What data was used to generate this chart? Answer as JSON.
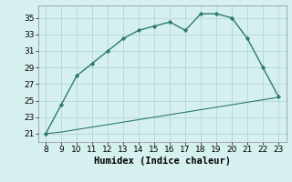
{
  "x": [
    8,
    9,
    10,
    11,
    12,
    13,
    14,
    15,
    16,
    17,
    18,
    19,
    20,
    21,
    22,
    23
  ],
  "y_main": [
    21,
    24.5,
    28,
    29.5,
    31,
    32.5,
    33.5,
    34,
    34.5,
    33.5,
    35.5,
    35.5,
    35,
    32.5,
    29,
    25.5
  ],
  "y_flat": [
    21,
    21.2,
    21.5,
    21.8,
    22.1,
    22.4,
    22.7,
    23.0,
    23.3,
    23.6,
    23.9,
    24.2,
    24.5,
    24.8,
    25.1,
    25.4
  ],
  "line_color": "#2d7a6e",
  "bg_color": "#d6f0ef",
  "grid_color": "#b0d8d4",
  "xlabel": "Humidex (Indice chaleur)",
  "xlim": [
    7.5,
    23.5
  ],
  "ylim": [
    20.0,
    36.5
  ],
  "xticks": [
    8,
    9,
    10,
    11,
    12,
    13,
    14,
    15,
    16,
    17,
    18,
    19,
    20,
    21,
    22,
    23
  ],
  "yticks": [
    21,
    23,
    25,
    27,
    29,
    31,
    33,
    35
  ],
  "xlabel_fontsize": 7.5,
  "tick_fontsize": 6.5
}
